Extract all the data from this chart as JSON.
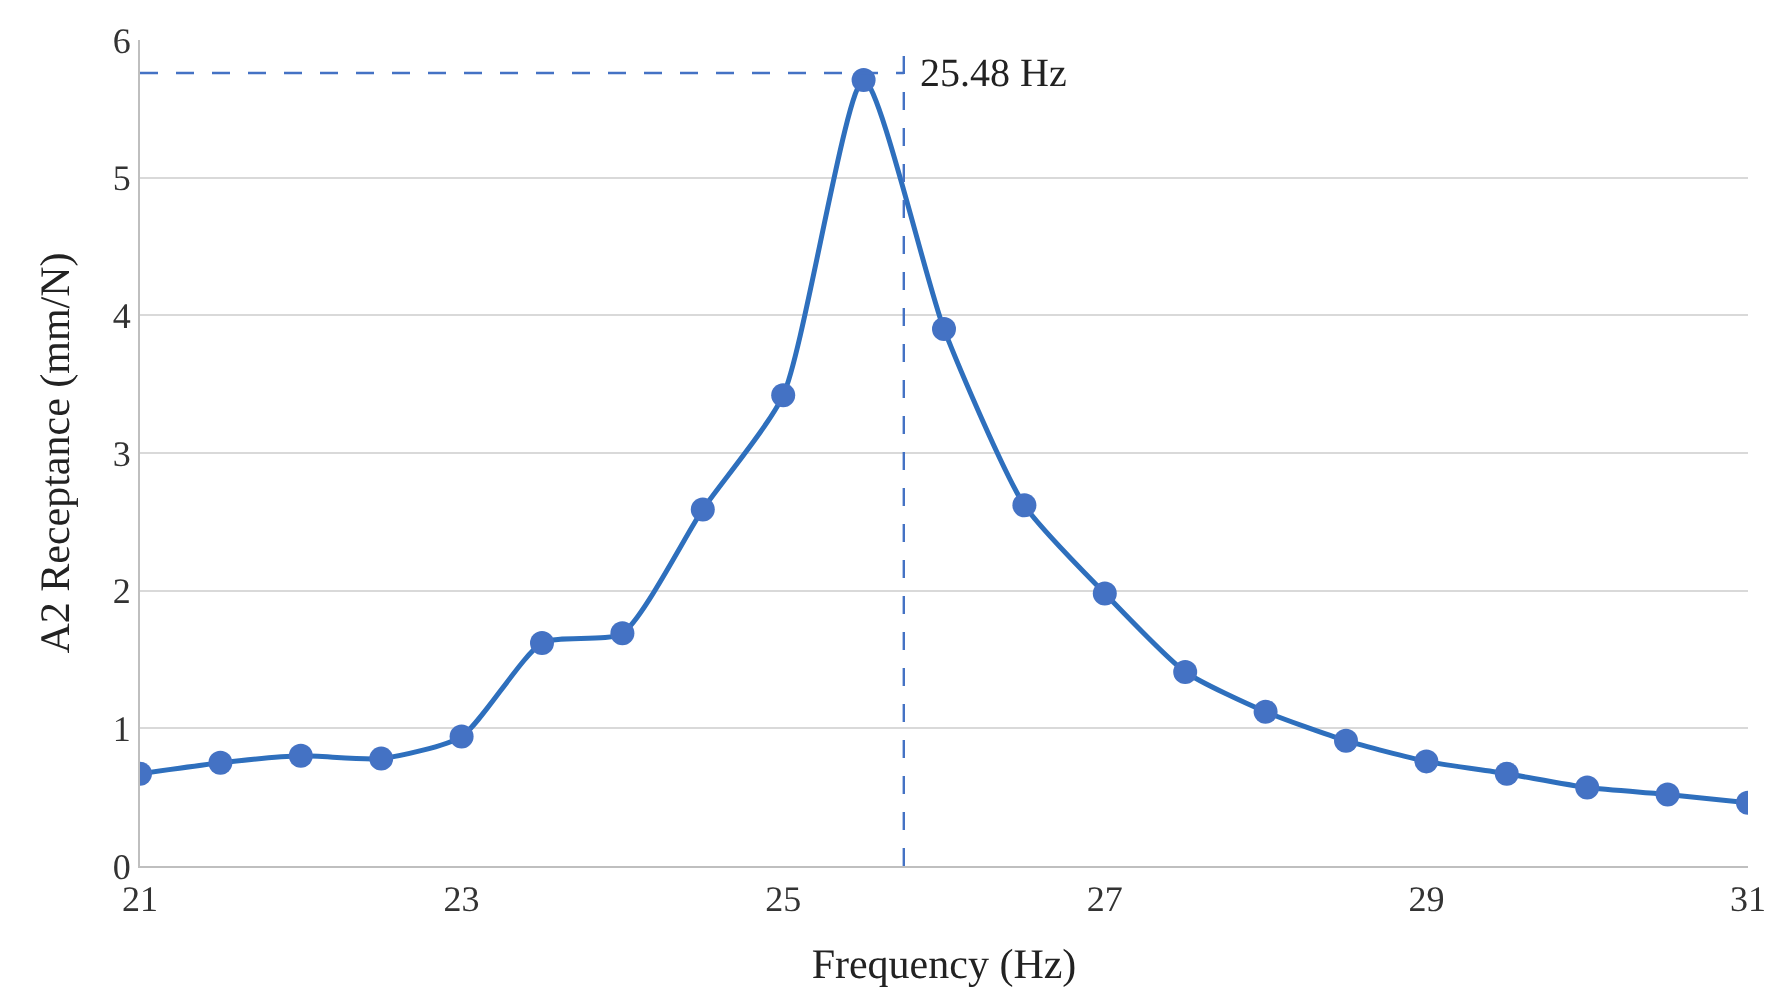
{
  "chart_data": {
    "type": "line",
    "xlabel": "Frequency (Hz)",
    "ylabel": "A2 Receptance (mm/N)",
    "x": [
      21,
      21.5,
      22,
      22.5,
      23,
      23.5,
      24,
      24.5,
      25,
      25.5,
      26,
      26.5,
      27,
      27.5,
      28,
      28.5,
      29,
      29.5,
      30,
      30.5,
      31
    ],
    "series": [
      {
        "color": "#2e6fbd",
        "values": [
          0.67,
          0.75,
          0.8,
          0.78,
          0.94,
          1.62,
          1.69,
          2.59,
          3.42,
          5.71,
          3.9,
          2.62,
          1.98,
          1.41,
          1.12,
          0.91,
          0.76,
          0.67,
          0.57,
          0.52,
          0.46
        ]
      }
    ],
    "xlim": [
      21,
      31
    ],
    "xticks": [
      21,
      23,
      25,
      27,
      29,
      31
    ],
    "ylim": [
      0,
      6
    ],
    "yticks": [
      0,
      1,
      2,
      3,
      4,
      5,
      6
    ],
    "grid": "y",
    "marker": "circle",
    "legend": false,
    "ref_lines": [
      {
        "axis": "x",
        "value": 25.75,
        "label": "25.48 Hz",
        "color": "#4472c4",
        "line_style": "dashed"
      },
      {
        "axis": "y",
        "value": 5.76,
        "label": null,
        "color": "#4472c4",
        "line_style": "dashed"
      }
    ]
  }
}
